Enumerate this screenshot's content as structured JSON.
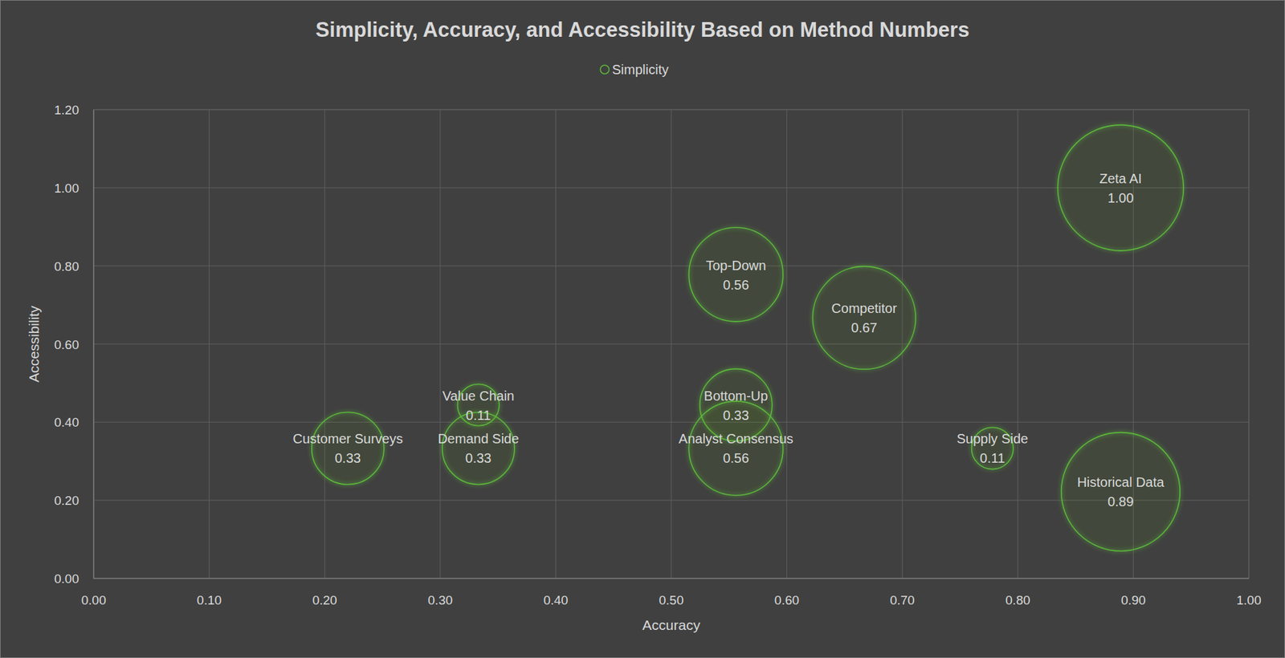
{
  "chart_data": {
    "type": "bubble",
    "title": "Simplicity, Accuracy, and Accessibility Based on Method Numbers",
    "x_label": "Accuracy",
    "y_label": "Accessibility",
    "xlim": [
      0,
      1
    ],
    "ylim": [
      0,
      1.2
    ],
    "xticks": [
      {
        "value": 0,
        "label": "0.00"
      },
      {
        "value": 0.1,
        "label": "0.10"
      },
      {
        "value": 0.2,
        "label": "0.20"
      },
      {
        "value": 0.3,
        "label": "0.30"
      },
      {
        "value": 0.4,
        "label": "0.40"
      },
      {
        "value": 0.5,
        "label": "0.50"
      },
      {
        "value": 0.6,
        "label": "0.60"
      },
      {
        "value": 0.7,
        "label": "0.70"
      },
      {
        "value": 0.8,
        "label": "0.80"
      },
      {
        "value": 0.9,
        "label": "0.90"
      },
      {
        "value": 1,
        "label": "1.00"
      }
    ],
    "yticks": [
      {
        "value": 0,
        "label": "0.00"
      },
      {
        "value": 0.2,
        "label": "0.20"
      },
      {
        "value": 0.4,
        "label": "0.40"
      },
      {
        "value": 0.6,
        "label": "0.60"
      },
      {
        "value": 0.8,
        "label": "0.80"
      },
      {
        "value": 1,
        "label": "1.00"
      },
      {
        "value": 1.2,
        "label": "1.20"
      }
    ],
    "grid": true,
    "legend": "top",
    "data_labels": true,
    "series": [
      {
        "name": "Simplicity",
        "color": "#5cb83a",
        "labels": [
          "Customer Surveys",
          "Value Chain",
          "Demand Side",
          "Top-Down",
          "Bottom-Up",
          "Analyst Consensus",
          "Competitor",
          "Supply Side",
          "Historical Data",
          "Zeta AI"
        ],
        "x": [
          0.22,
          0.333,
          0.333,
          0.556,
          0.556,
          0.556,
          0.667,
          0.778,
          0.889,
          0.889
        ],
        "values": [
          0.333,
          0.444,
          0.333,
          0.778,
          0.444,
          0.333,
          0.667,
          0.333,
          0.222,
          1.0
        ],
        "sizes": [
          0.33,
          0.11,
          0.33,
          0.56,
          0.33,
          0.56,
          0.67,
          0.11,
          0.89,
          1.0
        ],
        "size_labels": [
          "0.33",
          "0.11",
          "0.33",
          "0.56",
          "0.33",
          "0.56",
          "0.67",
          "0.11",
          "0.89",
          "1.00"
        ]
      }
    ]
  }
}
